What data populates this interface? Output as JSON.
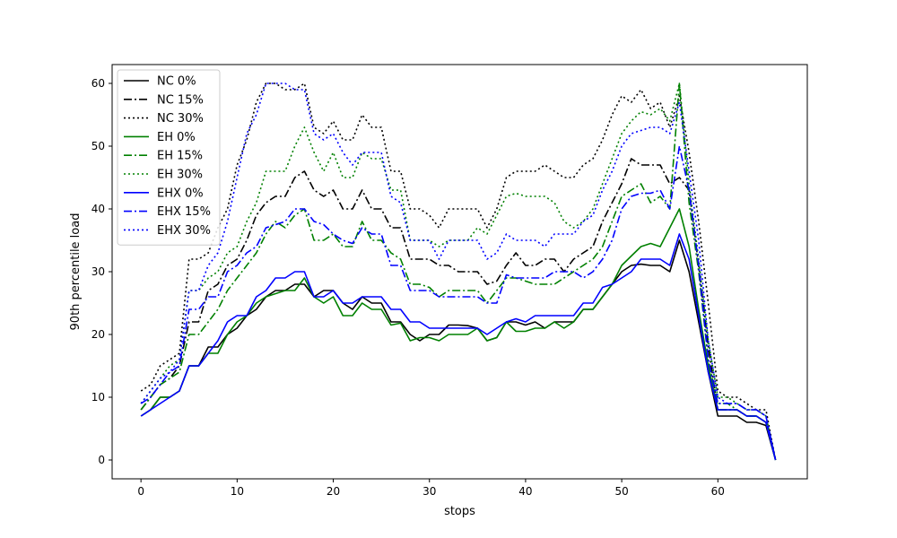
{
  "chart_data": {
    "type": "line",
    "title": "",
    "xlabel": "stops",
    "ylabel": "90th percentile load",
    "xlim": [
      -3,
      69.3
    ],
    "ylim": [
      -3,
      63
    ],
    "xticks": [
      0,
      10,
      20,
      30,
      40,
      50,
      60
    ],
    "yticks": [
      0,
      10,
      20,
      30,
      40,
      50,
      60
    ],
    "grid": false,
    "legend_position": "top-left",
    "x": [
      0,
      1,
      2,
      3,
      4,
      5,
      6,
      7,
      8,
      9,
      10,
      11,
      12,
      13,
      14,
      15,
      16,
      17,
      18,
      19,
      20,
      21,
      22,
      23,
      24,
      25,
      26,
      27,
      28,
      29,
      30,
      31,
      32,
      33,
      34,
      35,
      36,
      37,
      38,
      39,
      40,
      41,
      42,
      43,
      44,
      45,
      46,
      47,
      48,
      49,
      50,
      51,
      52,
      53,
      54,
      55,
      56,
      57,
      58,
      59,
      60,
      61,
      62,
      63,
      64,
      65,
      66
    ],
    "series": [
      {
        "name": "NC 0%",
        "color": "#000000",
        "dash": "solid",
        "values": [
          7,
          8,
          10,
          10,
          11,
          15,
          15,
          18,
          18,
          20,
          21,
          23,
          24,
          26,
          27,
          27,
          28,
          28,
          26,
          27,
          27,
          25,
          24,
          26,
          25,
          25,
          22,
          22,
          20,
          19,
          20,
          20,
          21.5,
          21.5,
          21.4,
          21,
          19,
          19.5,
          22,
          22,
          21.5,
          22,
          21,
          22,
          22,
          22,
          24,
          24,
          26,
          28,
          30,
          31,
          31.2,
          31,
          31,
          30,
          35,
          30,
          22,
          14,
          7,
          7,
          7,
          6,
          6,
          5.5,
          0
        ]
      },
      {
        "name": "NC 15%",
        "color": "#000000",
        "dash": "dashdot",
        "values": [
          8,
          10,
          12,
          13,
          15,
          22,
          22,
          27,
          28,
          31,
          32,
          35,
          39,
          41,
          42,
          42,
          45,
          46,
          43,
          42,
          43,
          40,
          40,
          43,
          40,
          40,
          37,
          37,
          32,
          32,
          32,
          31,
          31,
          30,
          30,
          30,
          28,
          28.5,
          31,
          33,
          31,
          31,
          32,
          32,
          30,
          32,
          33,
          34,
          38,
          41,
          44,
          48,
          47,
          47,
          47,
          44,
          45,
          43,
          31,
          18,
          8,
          8,
          8,
          7,
          7,
          6,
          0
        ]
      },
      {
        "name": "NC 30%",
        "color": "#000000",
        "dash": "dotted",
        "values": [
          11,
          12,
          15,
          16,
          17,
          32,
          32,
          33,
          37,
          40,
          47,
          51,
          57,
          60,
          60,
          59,
          59,
          60,
          53,
          52,
          54,
          51,
          51,
          55,
          53,
          53,
          46,
          46,
          40,
          40,
          39,
          37,
          40,
          40,
          40,
          40,
          37,
          40,
          45,
          46,
          46,
          46,
          47,
          46,
          45,
          45,
          47,
          48,
          51,
          55,
          58,
          57,
          59,
          56,
          57,
          53,
          58,
          49,
          38,
          25,
          11,
          10,
          10,
          9,
          8,
          8,
          0
        ]
      },
      {
        "name": "EH 0%",
        "color": "#008000",
        "dash": "solid",
        "values": [
          7,
          8,
          10,
          10,
          11,
          15,
          15,
          17,
          17,
          20,
          22,
          23,
          25,
          26,
          26.5,
          27,
          27,
          29,
          26,
          25,
          26,
          23,
          23,
          25,
          24,
          24,
          21.5,
          21.8,
          19,
          19.5,
          19.5,
          19,
          20,
          20,
          20,
          21,
          19,
          19.5,
          22,
          20.5,
          20.5,
          21,
          21,
          22,
          21,
          22,
          24,
          24,
          26,
          28,
          31,
          32.5,
          34,
          34.5,
          34,
          37,
          40,
          34,
          24,
          15,
          8,
          8,
          8,
          7,
          7,
          6,
          0
        ]
      },
      {
        "name": "EH 15%",
        "color": "#008000",
        "dash": "dashdot",
        "values": [
          8,
          10,
          12,
          13,
          14,
          20,
          20,
          22,
          24,
          27,
          29,
          31,
          33,
          36,
          38,
          37,
          39,
          40,
          35,
          35,
          36,
          34,
          34,
          38,
          35,
          35,
          33,
          32,
          28,
          28,
          27.5,
          26,
          27,
          27,
          27,
          27,
          25,
          27,
          29,
          29,
          28.5,
          28,
          28,
          28,
          29,
          30,
          31,
          32,
          34,
          38,
          42,
          43,
          44,
          41,
          42,
          40,
          60,
          41,
          30,
          16,
          9,
          9,
          8,
          7,
          7,
          6,
          0
        ]
      },
      {
        "name": "EH 30%",
        "color": "#008000",
        "dash": "dotted",
        "values": [
          9,
          11,
          13,
          15,
          16,
          27,
          27,
          29,
          30,
          33,
          34,
          38,
          41,
          46,
          46,
          46,
          50,
          53,
          49,
          46,
          49,
          45,
          45,
          49,
          48,
          48,
          43,
          43,
          35,
          35,
          35,
          34,
          35,
          35,
          35,
          37,
          36,
          39,
          42,
          42.5,
          42,
          42,
          42,
          41,
          38,
          37,
          38,
          40,
          44,
          48,
          52,
          54,
          55.5,
          55,
          56,
          54,
          60,
          44,
          32,
          19,
          10,
          10,
          9,
          8,
          8,
          7,
          0
        ]
      },
      {
        "name": "EHX 0%",
        "color": "#0000ff",
        "dash": "solid",
        "values": [
          7,
          8,
          9,
          10,
          11,
          15,
          15,
          17,
          19,
          22,
          23,
          23,
          26,
          27,
          29,
          29,
          30,
          30,
          26,
          26,
          27,
          25,
          25,
          26,
          26,
          26,
          24,
          24,
          22,
          22,
          21,
          21,
          21,
          21,
          21,
          21,
          20,
          21,
          22,
          22.5,
          22,
          23,
          23,
          23,
          23,
          23,
          25,
          25,
          27.5,
          28,
          29,
          30,
          32,
          32,
          32,
          31,
          36,
          32,
          23,
          14,
          8,
          8,
          8,
          7,
          7,
          6,
          0
        ]
      },
      {
        "name": "EHX 15%",
        "color": "#0000ff",
        "dash": "dashdot",
        "values": [
          9,
          10,
          12,
          14,
          15,
          24,
          24,
          26,
          26,
          30,
          31,
          33,
          34,
          37,
          37.5,
          38,
          40,
          40,
          38,
          37.5,
          36,
          35,
          34.5,
          37,
          36,
          36,
          31,
          31,
          27,
          27,
          27,
          26,
          26,
          26,
          26,
          26,
          25,
          25,
          29.5,
          29,
          29,
          29,
          29,
          30,
          30,
          30,
          29,
          30,
          32,
          35,
          40,
          42,
          42.5,
          42.5,
          43,
          40,
          50,
          43,
          31,
          16,
          9,
          9,
          9,
          8,
          8,
          7,
          0
        ]
      },
      {
        "name": "EHX 30%",
        "color": "#0000ff",
        "dash": "dotted",
        "values": [
          9,
          11,
          13,
          14,
          16,
          27,
          27,
          31,
          33,
          38,
          45,
          52,
          55,
          60,
          60,
          60,
          59,
          59,
          52,
          51,
          52,
          49,
          47,
          49,
          49,
          49,
          42,
          41,
          35,
          35,
          35,
          32,
          35,
          35,
          35,
          35,
          32,
          33,
          36,
          35,
          35,
          35,
          34,
          36,
          36,
          36,
          38,
          39,
          43,
          46,
          50,
          52,
          52.5,
          53,
          53,
          52,
          57,
          46,
          35,
          19,
          10,
          9,
          9,
          8,
          8,
          7,
          0
        ]
      }
    ]
  }
}
